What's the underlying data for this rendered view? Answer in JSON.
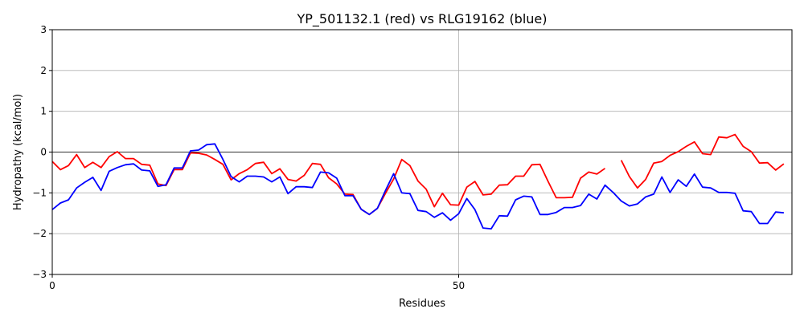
{
  "chart_data": {
    "type": "line",
    "title": "YP_501132.1 (red) vs RLG19162 (blue)",
    "xlabel": "Residues",
    "ylabel": "Hydropathy (kcal/mol)",
    "xlim": [
      0,
      91
    ],
    "ylim": [
      -3,
      3
    ],
    "xticks": [
      0,
      50
    ],
    "yticks": [
      -3,
      -2,
      -1,
      0,
      1,
      2,
      3
    ],
    "grid": true,
    "zero_line": true,
    "series": [
      {
        "color": "#ff0000",
        "points": [
          [
            0,
            -0.23
          ],
          [
            1,
            -0.43
          ],
          [
            2,
            -0.33
          ],
          [
            3,
            -0.06
          ],
          [
            4,
            -0.38
          ],
          [
            5,
            -0.25
          ],
          [
            6,
            -0.38
          ],
          [
            7,
            -0.11
          ],
          [
            8,
            0.01
          ],
          [
            9,
            -0.16
          ],
          [
            10,
            -0.16
          ],
          [
            11,
            -0.3
          ],
          [
            12,
            -0.32
          ],
          [
            13,
            -0.78
          ],
          [
            14,
            -0.82
          ],
          [
            15,
            -0.43
          ],
          [
            16,
            -0.43
          ],
          [
            17,
            -0.02
          ],
          [
            18,
            -0.03
          ],
          [
            19,
            -0.07
          ],
          [
            20,
            -0.18
          ],
          [
            21,
            -0.3
          ],
          [
            22,
            -0.68
          ],
          [
            23,
            -0.53
          ],
          [
            24,
            -0.43
          ],
          [
            25,
            -0.28
          ],
          [
            26,
            -0.25
          ],
          [
            27,
            -0.53
          ],
          [
            28,
            -0.41
          ],
          [
            29,
            -0.67
          ],
          [
            30,
            -0.71
          ],
          [
            31,
            -0.57
          ],
          [
            32,
            -0.28
          ],
          [
            33,
            -0.3
          ],
          [
            34,
            -0.63
          ],
          [
            35,
            -0.78
          ],
          [
            36,
            -1.03
          ],
          [
            37,
            -1.04
          ],
          [
            38,
            -1.4
          ],
          [
            39,
            -1.53
          ],
          [
            40,
            -1.38
          ],
          [
            41,
            -1.01
          ],
          [
            42,
            -0.66
          ],
          [
            43,
            -0.18
          ],
          [
            44,
            -0.33
          ],
          [
            45,
            -0.71
          ],
          [
            46,
            -0.91
          ],
          [
            47,
            -1.34
          ],
          [
            48,
            -1.01
          ],
          [
            49,
            -1.29
          ],
          [
            50,
            -1.3
          ],
          [
            51,
            -0.86
          ],
          [
            52,
            -0.72
          ],
          [
            53,
            -1.05
          ],
          [
            54,
            -1.03
          ],
          [
            55,
            -0.81
          ],
          [
            56,
            -0.8
          ],
          [
            57,
            -0.59
          ],
          [
            58,
            -0.59
          ],
          [
            59,
            -0.31
          ],
          [
            60,
            -0.3
          ],
          [
            61,
            -0.72
          ],
          [
            62,
            -1.12
          ],
          [
            63,
            -1.12
          ],
          [
            64,
            -1.11
          ],
          [
            65,
            -0.64
          ],
          [
            66,
            -0.49
          ],
          [
            67,
            -0.54
          ],
          [
            68,
            -0.4
          ],
          null,
          [
            70,
            -0.2
          ],
          [
            71,
            -0.6
          ],
          [
            72,
            -0.88
          ],
          [
            73,
            -0.67
          ],
          [
            74,
            -0.27
          ],
          [
            75,
            -0.23
          ],
          [
            76,
            -0.08
          ],
          [
            77,
            0.01
          ],
          [
            78,
            0.14
          ],
          [
            79,
            0.25
          ],
          [
            80,
            -0.04
          ],
          [
            81,
            -0.06
          ],
          [
            82,
            0.37
          ],
          [
            83,
            0.35
          ],
          [
            84,
            0.43
          ],
          [
            85,
            0.14
          ],
          [
            86,
            0.01
          ],
          [
            87,
            -0.27
          ],
          [
            88,
            -0.26
          ],
          [
            89,
            -0.44
          ],
          [
            90,
            -0.29
          ]
        ]
      },
      {
        "color": "#0000ff",
        "points": [
          [
            0,
            -1.41
          ],
          [
            1,
            -1.25
          ],
          [
            2,
            -1.17
          ],
          [
            3,
            -0.88
          ],
          [
            4,
            -0.74
          ],
          [
            5,
            -0.62
          ],
          [
            6,
            -0.94
          ],
          [
            7,
            -0.47
          ],
          [
            8,
            -0.38
          ],
          [
            9,
            -0.31
          ],
          [
            10,
            -0.29
          ],
          [
            11,
            -0.44
          ],
          [
            12,
            -0.46
          ],
          [
            13,
            -0.84
          ],
          [
            14,
            -0.8
          ],
          [
            15,
            -0.39
          ],
          [
            16,
            -0.39
          ],
          [
            17,
            0.03
          ],
          [
            18,
            0.05
          ],
          [
            19,
            0.18
          ],
          [
            20,
            0.2
          ],
          [
            21,
            -0.18
          ],
          [
            22,
            -0.6
          ],
          [
            23,
            -0.73
          ],
          [
            24,
            -0.59
          ],
          [
            25,
            -0.59
          ],
          [
            26,
            -0.61
          ],
          [
            27,
            -0.73
          ],
          [
            28,
            -0.61
          ],
          [
            29,
            -1.02
          ],
          [
            30,
            -0.85
          ],
          [
            31,
            -0.85
          ],
          [
            32,
            -0.87
          ],
          [
            33,
            -0.49
          ],
          [
            34,
            -0.51
          ],
          [
            35,
            -0.64
          ],
          [
            36,
            -1.07
          ],
          [
            37,
            -1.07
          ],
          [
            38,
            -1.4
          ],
          [
            39,
            -1.53
          ],
          [
            40,
            -1.38
          ],
          [
            41,
            -0.94
          ],
          [
            42,
            -0.53
          ],
          [
            43,
            -1.0
          ],
          [
            44,
            -1.02
          ],
          [
            45,
            -1.43
          ],
          [
            46,
            -1.46
          ],
          [
            47,
            -1.6
          ],
          [
            48,
            -1.49
          ],
          [
            49,
            -1.67
          ],
          [
            50,
            -1.51
          ],
          [
            51,
            -1.14
          ],
          [
            52,
            -1.41
          ],
          [
            53,
            -1.86
          ],
          [
            54,
            -1.88
          ],
          [
            55,
            -1.56
          ],
          [
            56,
            -1.57
          ],
          [
            57,
            -1.17
          ],
          [
            58,
            -1.08
          ],
          [
            59,
            -1.1
          ],
          [
            60,
            -1.53
          ],
          [
            61,
            -1.53
          ],
          [
            62,
            -1.48
          ],
          [
            63,
            -1.36
          ],
          [
            64,
            -1.36
          ],
          [
            65,
            -1.31
          ],
          [
            66,
            -1.03
          ],
          [
            67,
            -1.15
          ],
          [
            68,
            -0.81
          ],
          [
            69,
            -0.99
          ],
          [
            70,
            -1.2
          ],
          [
            71,
            -1.32
          ],
          [
            72,
            -1.27
          ],
          [
            73,
            -1.1
          ],
          [
            74,
            -1.03
          ],
          [
            75,
            -0.61
          ],
          [
            76,
            -0.99
          ],
          [
            77,
            -0.68
          ],
          [
            78,
            -0.84
          ],
          [
            79,
            -0.54
          ],
          [
            80,
            -0.86
          ],
          [
            81,
            -0.88
          ],
          [
            82,
            -0.99
          ],
          [
            83,
            -0.99
          ],
          [
            84,
            -1.01
          ],
          [
            85,
            -1.44
          ],
          [
            86,
            -1.46
          ],
          [
            87,
            -1.75
          ],
          [
            88,
            -1.75
          ],
          [
            89,
            -1.47
          ],
          [
            90,
            -1.49
          ]
        ]
      }
    ]
  }
}
